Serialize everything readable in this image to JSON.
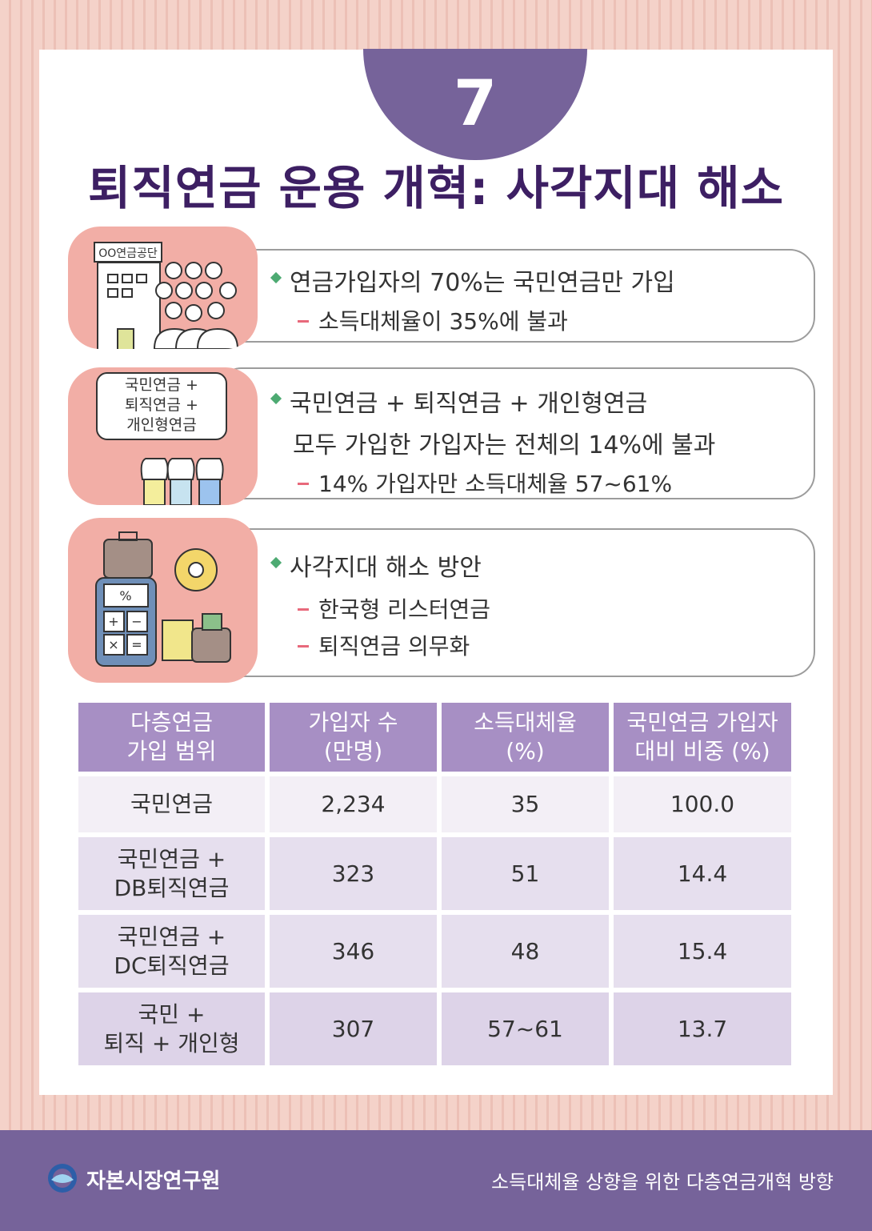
{
  "page_number": "7",
  "title": "퇴직연금 운용 개혁: 사각지대 해소",
  "sections": [
    {
      "lines": [
        "연금가입자의 70%는 국민연금만 가입"
      ],
      "subs": [
        "소득대체율이 35%에 불과"
      ],
      "illustration_label": "OO연금공단"
    },
    {
      "lines": [
        "국민연금 + 퇴직연금 + 개인형연금",
        "모두 가입한 가입자는 전체의 14%에 불과"
      ],
      "subs": [
        "14% 가입자만 소득대체율 57~61%"
      ],
      "bubble": [
        "국민연금 +",
        "퇴직연금 +",
        "개인형연금"
      ]
    },
    {
      "lines": [
        "사각지대 해소 방안"
      ],
      "subs": [
        "한국형 리스터연금",
        "퇴직연금 의무화"
      ]
    }
  ],
  "table": {
    "headers": [
      [
        "다층연금",
        "가입 범위"
      ],
      [
        "가입자 수",
        "(만명)"
      ],
      [
        "소득대체율",
        "(%)"
      ],
      [
        "국민연금 가입자",
        "대비 비중 (%)"
      ]
    ],
    "rows": [
      {
        "label": [
          "국민연금"
        ],
        "subscribers": "2,234",
        "replacement": "35",
        "ratio": "100.0"
      },
      {
        "label": [
          "국민연금 +",
          "DB퇴직연금"
        ],
        "subscribers": "323",
        "replacement": "51",
        "ratio": "14.4"
      },
      {
        "label": [
          "국민연금 +",
          "DC퇴직연금"
        ],
        "subscribers": "346",
        "replacement": "48",
        "ratio": "15.4"
      },
      {
        "label": [
          "국민 +",
          "퇴직 + 개인형"
        ],
        "subscribers": "307",
        "replacement": "57~61",
        "ratio": "13.7"
      }
    ]
  },
  "footer": {
    "brand": "자본시장연구원",
    "tagline": "소득대체율 상향을 위한 다층연금개혁 방향"
  },
  "colors": {
    "accent_purple": "#76639a",
    "title_purple": "#3d1f63",
    "header_purple": "#a78fc4",
    "illus_pink": "#f2aea6",
    "bullet_green": "#4daa72",
    "dash_pink": "#e8697b"
  }
}
